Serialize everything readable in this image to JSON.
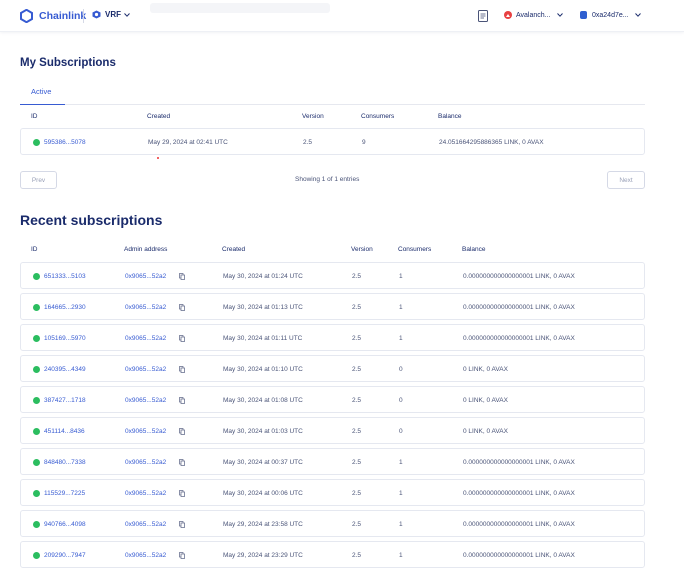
{
  "header": {
    "brand": "Chainlink",
    "product": "VRF",
    "network": "Avalanch...",
    "account": "0xa24d7e..."
  },
  "my_subscriptions": {
    "title": "My Subscriptions",
    "tab": "Active",
    "columns": [
      "ID",
      "Created",
      "Version",
      "Consumers",
      "Balance"
    ],
    "rows": [
      {
        "id": "595386...5078",
        "created": "May 29, 2024 at 02:41 UTC",
        "version": "2.5",
        "consumers": "9",
        "balance": "24.051664295886365 LINK, 0 AVAX"
      }
    ],
    "prev": "Prev",
    "next": "Next",
    "entries": "Showing 1 of 1 entries"
  },
  "recent": {
    "title": "Recent subscriptions",
    "columns": [
      "ID",
      "Admin address",
      "Created",
      "Version",
      "Consumers",
      "Balance"
    ],
    "rows": [
      {
        "id": "651333...5103",
        "admin": "0x9065...52a2",
        "created": "May 30, 2024 at 01:24 UTC",
        "version": "2.5",
        "consumers": "1",
        "balance": "0.000000000000000001 LINK, 0 AVAX"
      },
      {
        "id": "164665...2930",
        "admin": "0x9065...52a2",
        "created": "May 30, 2024 at 01:13 UTC",
        "version": "2.5",
        "consumers": "1",
        "balance": "0.000000000000000001 LINK, 0 AVAX"
      },
      {
        "id": "105169...5970",
        "admin": "0x9065...52a2",
        "created": "May 30, 2024 at 01:11 UTC",
        "version": "2.5",
        "consumers": "1",
        "balance": "0.000000000000000001 LINK, 0 AVAX"
      },
      {
        "id": "240395...4349",
        "admin": "0x9065...52a2",
        "created": "May 30, 2024 at 01:10 UTC",
        "version": "2.5",
        "consumers": "0",
        "balance": "0 LINK, 0 AVAX"
      },
      {
        "id": "387427...1718",
        "admin": "0x9065...52a2",
        "created": "May 30, 2024 at 01:08 UTC",
        "version": "2.5",
        "consumers": "0",
        "balance": "0 LINK, 0 AVAX"
      },
      {
        "id": "451114...8436",
        "admin": "0x9065...52a2",
        "created": "May 30, 2024 at 01:03 UTC",
        "version": "2.5",
        "consumers": "0",
        "balance": "0 LINK, 0 AVAX"
      },
      {
        "id": "848480...7338",
        "admin": "0x9065...52a2",
        "created": "May 30, 2024 at 00:37 UTC",
        "version": "2.5",
        "consumers": "1",
        "balance": "0.000000000000000001 LINK, 0 AVAX"
      },
      {
        "id": "115529...7225",
        "admin": "0x9065...52a2",
        "created": "May 30, 2024 at 00:06 UTC",
        "version": "2.5",
        "consumers": "1",
        "balance": "0.000000000000000001 LINK, 0 AVAX"
      },
      {
        "id": "940766...4098",
        "admin": "0x9065...52a2",
        "created": "May 29, 2024 at 23:58 UTC",
        "version": "2.5",
        "consumers": "1",
        "balance": "0.000000000000000001 LINK, 0 AVAX"
      },
      {
        "id": "209290...7947",
        "admin": "0x9065...52a2",
        "created": "May 29, 2024 at 23:29 UTC",
        "version": "2.5",
        "consumers": "1",
        "balance": "0.000000000000000001 LINK, 0 AVAX"
      }
    ]
  },
  "colors": {
    "accent": "#375bd2",
    "text": "#1a2b6b",
    "active_dot": "#2bbd5f",
    "avalanche": "#e84142"
  },
  "icons": [
    "chainlink-logo-icon",
    "vrf-icon",
    "chevron-down-icon",
    "document-icon",
    "avalanche-icon",
    "wallet-icon",
    "status-dot-icon",
    "copy-icon"
  ]
}
